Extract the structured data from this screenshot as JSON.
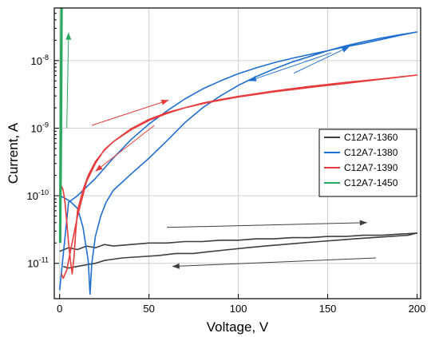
{
  "chart_data": {
    "type": "line",
    "xlabel": "Voltage, V",
    "ylabel": "Current, A",
    "xlim": [
      -3,
      202
    ],
    "ylim": [
      3e-12,
      6e-08
    ],
    "yscale": "log",
    "grid": true,
    "legend_position": "right",
    "x_ticks": [
      0,
      50,
      100,
      150,
      200
    ],
    "y_ticks": [
      {
        "value": 1e-11,
        "label": "10",
        "exp": "-11"
      },
      {
        "value": 1e-10,
        "label": "10",
        "exp": "-10"
      },
      {
        "value": 1e-09,
        "label": "10",
        "exp": "-9"
      },
      {
        "value": 1e-08,
        "label": "10",
        "exp": "-8"
      }
    ],
    "series": [
      {
        "name": "C12A7-1360",
        "color": "#3f3f3f",
        "x": [
          0,
          5,
          10,
          15,
          20,
          25,
          30,
          40,
          50,
          60,
          70,
          80,
          90,
          100,
          110,
          120,
          130,
          140,
          150,
          160,
          170,
          180,
          190,
          200,
          195,
          185,
          175,
          165,
          155,
          145,
          135,
          125,
          115,
          105,
          95,
          85,
          75,
          65,
          55,
          45,
          35,
          25,
          20,
          15,
          10,
          5,
          2
        ],
        "y": [
          1.5e-11,
          1.7e-11,
          1.6e-11,
          1.8e-11,
          1.7e-11,
          1.9e-11,
          1.8e-11,
          1.9e-11,
          2e-11,
          2e-11,
          2.1e-11,
          2.1e-11,
          2.2e-11,
          2.2e-11,
          2.3e-11,
          2.3e-11,
          2.4e-11,
          2.4e-11,
          2.5e-11,
          2.5e-11,
          2.6e-11,
          2.6e-11,
          2.7e-11,
          2.8e-11,
          2.6e-11,
          2.5e-11,
          2.4e-11,
          2.3e-11,
          2.2e-11,
          2.1e-11,
          2e-11,
          1.9e-11,
          1.8e-11,
          1.7e-11,
          1.6e-11,
          1.5e-11,
          1.4e-11,
          1.4e-11,
          1.3e-11,
          1.25e-11,
          1.2e-11,
          1.1e-11,
          1e-11,
          9.5e-12,
          9e-12,
          8.5e-12,
          9e-12
        ]
      },
      {
        "name": "C12A7-1380",
        "color": "#1f6fd1",
        "x": [
          0,
          3,
          6,
          10,
          13,
          16,
          17,
          18,
          20,
          23,
          26,
          30,
          40,
          50,
          60,
          70,
          80,
          90,
          100,
          110,
          120,
          130,
          140,
          150,
          160,
          170,
          180,
          190,
          200,
          190,
          180,
          170,
          160,
          150,
          140,
          130,
          120,
          110,
          100,
          90,
          80,
          70,
          60,
          50,
          40,
          30,
          20,
          10,
          5,
          0
        ],
        "y": [
          1e-10,
          9.2e-11,
          8.2e-11,
          6.5e-11,
          3.5e-11,
          1.1e-11,
          3.5e-12,
          1e-11,
          2.5e-11,
          5e-11,
          8e-11,
          1.2e-10,
          2.1e-10,
          3.6e-10,
          6.5e-10,
          1.2e-09,
          2e-09,
          3e-09,
          4.3e-09,
          5.8e-09,
          7.5e-09,
          9.5e-09,
          1.15e-08,
          1.4e-08,
          1.65e-08,
          1.9e-08,
          2.15e-08,
          2.4e-08,
          2.65e-08,
          2.35e-08,
          2.05e-08,
          1.8e-08,
          1.6e-08,
          1.4e-08,
          1.23e-08,
          1.08e-08,
          9.3e-09,
          7.8e-09,
          6.4e-09,
          5e-09,
          3.8e-09,
          2.7e-09,
          1.8e-09,
          1.15e-09,
          6.8e-10,
          3.6e-10,
          1.8e-10,
          1e-10,
          8e-11,
          4e-12
        ]
      },
      {
        "name": "C12A7-1390",
        "color": "#e83a3a",
        "x": [
          1,
          2,
          3,
          4,
          5,
          6,
          7,
          8,
          9,
          10,
          13,
          16,
          20,
          25,
          30,
          40,
          50,
          60,
          70,
          80,
          90,
          100,
          120,
          140,
          160,
          180,
          200,
          180,
          160,
          140,
          120,
          100,
          90,
          80,
          70,
          60,
          50,
          40,
          30,
          25,
          20,
          15,
          10,
          6,
          4,
          2,
          1
        ],
        "y": [
          1.4e-10,
          1.2e-10,
          8e-11,
          4e-11,
          2e-11,
          1.1e-11,
          7e-12,
          1.2e-11,
          3e-11,
          6e-11,
          1.2e-10,
          2e-10,
          3.2e-10,
          4.7e-10,
          6.3e-10,
          9.5e-10,
          1.3e-09,
          1.65e-09,
          2e-09,
          2.35e-09,
          2.65e-09,
          2.95e-09,
          3.55e-09,
          4.15e-09,
          4.75e-09,
          5.35e-09,
          6.1e-09,
          5.3e-09,
          4.6e-09,
          4e-09,
          3.45e-09,
          2.9e-09,
          2.6e-09,
          2.3e-09,
          2e-09,
          1.7e-09,
          1.35e-09,
          9.8e-10,
          6.3e-10,
          4.8e-10,
          3e-10,
          1.6e-10,
          5e-11,
          1.5e-11,
          8e-12,
          6e-12,
          7e-12
        ]
      },
      {
        "name": "C12A7-1450",
        "color": "#2aa860",
        "x": [
          0.3,
          0.5,
          0.7,
          0.9,
          1.0,
          1.1,
          1.2,
          1.0,
          0.8,
          0.6,
          0.4,
          0.3
        ],
        "y": [
          2e-11,
          1e-10,
          5e-10,
          3e-09,
          2e-08,
          8e-08,
          9e-08,
          5e-08,
          1e-08,
          1e-09,
          1e-10,
          2e-11
        ]
      }
    ],
    "arrows": [
      {
        "series": "C12A7-1360",
        "from": [
          60,
          3.4e-11
        ],
        "to": [
          172,
          4e-11
        ]
      },
      {
        "series": "C12A7-1360",
        "from": [
          177,
          1.2e-11
        ],
        "to": [
          63,
          9e-12
        ]
      },
      {
        "series": "C12A7-1390",
        "from": [
          18,
          1.1e-09
        ],
        "to": [
          61,
          2.6e-09
        ]
      },
      {
        "series": "C12A7-1390",
        "from": [
          53,
          1.1e-09
        ],
        "to": [
          20,
          2.3e-10
        ]
      },
      {
        "series": "C12A7-1380",
        "from": [
          152,
          1.3e-08
        ],
        "to": [
          106,
          5e-09
        ]
      },
      {
        "series": "C12A7-1380",
        "from": [
          131,
          6.5e-09
        ],
        "to": [
          162,
          1.6e-08
        ]
      },
      {
        "series": "C12A7-1450",
        "from": [
          4,
          1e-09
        ],
        "to": [
          5,
          2.6e-08
        ]
      }
    ]
  }
}
